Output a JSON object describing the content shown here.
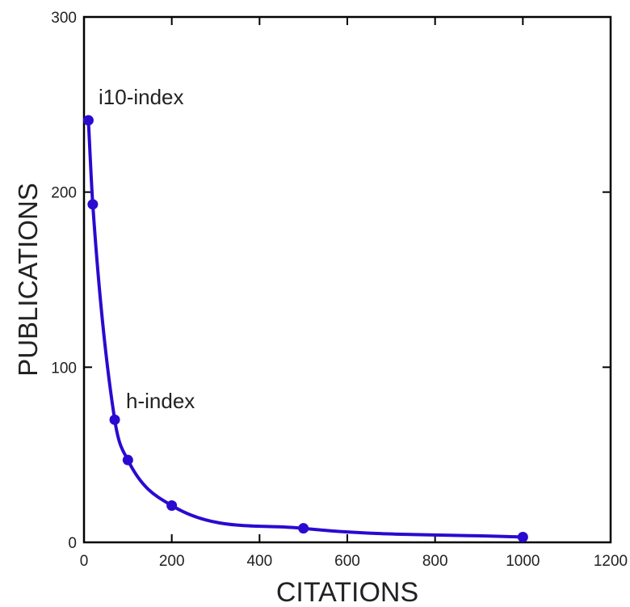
{
  "chart_data": {
    "type": "line",
    "xlabel": "CITATIONS",
    "ylabel": "PUBLICATIONS",
    "xlim": [
      0,
      1200
    ],
    "ylim": [
      0,
      300
    ],
    "xticks": [
      0,
      200,
      400,
      600,
      800,
      1000,
      1200
    ],
    "yticks": [
      0,
      100,
      200,
      300
    ],
    "grid": false,
    "color": "#2a0ad0",
    "series": [
      {
        "x": [
          10,
          20,
          70,
          100,
          200,
          500,
          1000
        ],
        "y": [
          241,
          193,
          70,
          47,
          21,
          8,
          3
        ]
      }
    ],
    "annotations": [
      {
        "text": "i10-index",
        "x": 10,
        "y": 241
      },
      {
        "text": "h-index",
        "x": 70,
        "y": 70
      }
    ]
  }
}
